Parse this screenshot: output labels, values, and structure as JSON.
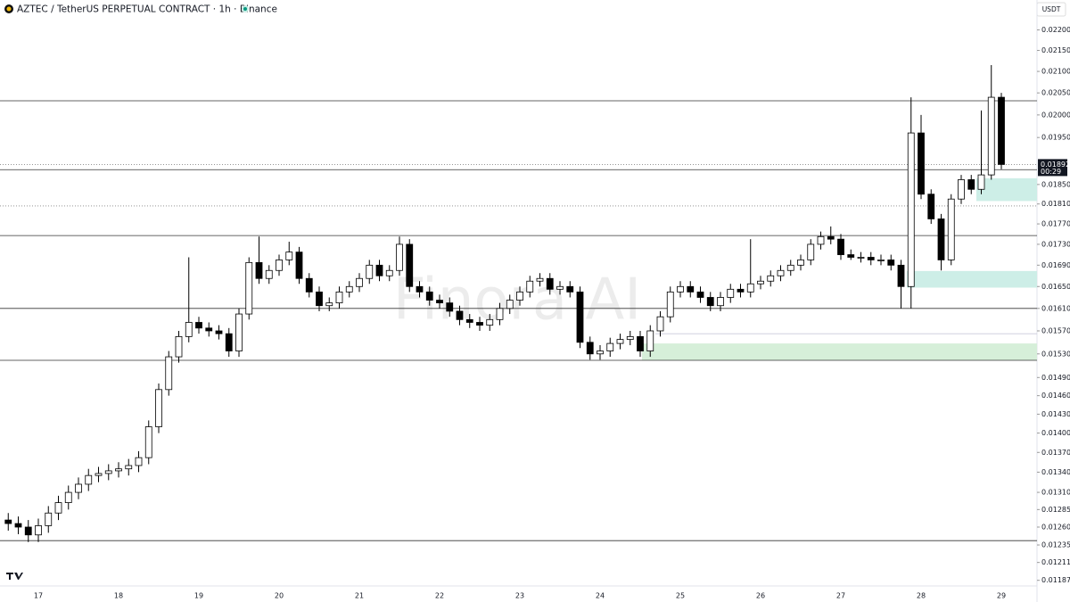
{
  "chart_data": {
    "type": "candlestick",
    "title": "AZTEC / TetherUS PERPETUAL CONTRACT · 1h · Binance",
    "currency": "USDT",
    "watermark": "Finora AI",
    "log_scale": true,
    "up_color": "#ffffff",
    "down_color": "#000000",
    "categories": [
      null,
      null,
      null,
      "17",
      null,
      null,
      null,
      null,
      null,
      null,
      null,
      "18",
      null,
      null,
      null,
      null,
      null,
      null,
      null,
      "19",
      null,
      null,
      null,
      null,
      null,
      null,
      null,
      "20",
      null,
      null,
      null,
      null,
      null,
      null,
      null,
      "21",
      null,
      null,
      null,
      null,
      null,
      null,
      null,
      "22",
      null,
      null,
      null,
      null,
      null,
      null,
      null,
      "23",
      null,
      null,
      null,
      null,
      null,
      null,
      null,
      "24",
      null,
      null,
      null,
      null,
      null,
      null,
      null,
      "25",
      null,
      null,
      null,
      null,
      null,
      null,
      null,
      "26",
      null,
      null,
      null,
      null,
      null,
      null,
      null,
      "27",
      null,
      null,
      null,
      null,
      null,
      null,
      null,
      "28",
      null,
      null,
      null,
      null,
      null,
      null,
      null,
      "29"
    ],
    "open": [
      0.0127,
      0.01265,
      0.0126,
      0.01249,
      0.01262,
      0.0128,
      0.01295,
      0.0131,
      0.01322,
      0.01335,
      0.01338,
      0.01342,
      0.01345,
      0.0135,
      0.01362,
      0.0141,
      0.0147,
      0.01525,
      0.0156,
      0.01585,
      0.01575,
      0.0157,
      0.01565,
      0.01535,
      0.016,
      0.01695,
      0.01665,
      0.0168,
      0.017,
      0.01715,
      0.01665,
      0.0164,
      0.01615,
      0.0162,
      0.0164,
      0.0165,
      0.01665,
      0.0169,
      0.0167,
      0.0168,
      0.0173,
      0.0165,
      0.0164,
      0.01625,
      0.0162,
      0.01605,
      0.0159,
      0.01585,
      0.0158,
      0.0159,
      0.0161,
      0.01625,
      0.0164,
      0.0166,
      0.01665,
      0.01645,
      0.0165,
      0.0164,
      0.0155,
      0.0153,
      0.01535,
      0.01548,
      0.01555,
      0.0156,
      0.01535,
      0.0157,
      0.01595,
      0.0164,
      0.0165,
      0.0164,
      0.0163,
      0.01615,
      0.0163,
      0.01645,
      0.0164,
      0.01655,
      0.0166,
      0.0167,
      0.0168,
      0.0169,
      0.017,
      0.0173,
      0.01745,
      0.0174,
      0.0171,
      0.01705,
      0.01705,
      0.017,
      0.017,
      0.0169,
      0.0165,
      0.0196,
      0.0183,
      0.0178,
      0.017,
      0.0182,
      0.0186,
      0.0184,
      0.0187,
      0.0204
    ],
    "high": [
      0.0128,
      0.01275,
      0.0127,
      0.01272,
      0.0129,
      0.01305,
      0.0132,
      0.01332,
      0.01345,
      0.01348,
      0.01352,
      0.01355,
      0.0136,
      0.01372,
      0.0142,
      0.0148,
      0.01535,
      0.0157,
      0.01705,
      0.01595,
      0.01585,
      0.0158,
      0.01575,
      0.0161,
      0.01705,
      0.01745,
      0.0169,
      0.0171,
      0.01735,
      0.01725,
      0.01675,
      0.0165,
      0.0163,
      0.0165,
      0.0166,
      0.01675,
      0.017,
      0.017,
      0.0169,
      0.01745,
      0.0174,
      0.0166,
      0.0165,
      0.01635,
      0.0163,
      0.01615,
      0.016,
      0.01595,
      0.016,
      0.0162,
      0.01635,
      0.0165,
      0.0167,
      0.01675,
      0.01675,
      0.0166,
      0.0166,
      0.0165,
      0.0156,
      0.01545,
      0.01558,
      0.01565,
      0.0157,
      0.0157,
      0.0158,
      0.01605,
      0.0165,
      0.0166,
      0.0166,
      0.0165,
      0.0164,
      0.0164,
      0.01655,
      0.01655,
      0.0174,
      0.0167,
      0.0168,
      0.0169,
      0.017,
      0.0171,
      0.0174,
      0.01755,
      0.01765,
      0.0175,
      0.0172,
      0.01715,
      0.01715,
      0.0171,
      0.0171,
      0.017,
      0.0204,
      0.02,
      0.0184,
      0.0179,
      0.0183,
      0.0187,
      0.0187,
      0.0201,
      0.02115,
      0.0205
    ],
    "low": [
      0.01255,
      0.0125,
      0.01239,
      0.01239,
      0.01252,
      0.0127,
      0.01285,
      0.013,
      0.01312,
      0.01325,
      0.01328,
      0.01332,
      0.01335,
      0.0134,
      0.01352,
      0.014,
      0.0146,
      0.01515,
      0.0155,
      0.01565,
      0.0156,
      0.01555,
      0.01525,
      0.01525,
      0.0159,
      0.01655,
      0.01655,
      0.0167,
      0.0169,
      0.01655,
      0.0163,
      0.01605,
      0.01605,
      0.0161,
      0.0163,
      0.0164,
      0.01655,
      0.0166,
      0.0166,
      0.0167,
      0.0164,
      0.0163,
      0.01615,
      0.0161,
      0.01595,
      0.0158,
      0.01575,
      0.0157,
      0.0157,
      0.0158,
      0.016,
      0.01615,
      0.0163,
      0.0165,
      0.01635,
      0.01635,
      0.0163,
      0.0154,
      0.0152,
      0.0152,
      0.01525,
      0.01538,
      0.01545,
      0.01525,
      0.01525,
      0.0156,
      0.01585,
      0.0163,
      0.0163,
      0.0162,
      0.01605,
      0.01605,
      0.0162,
      0.0163,
      0.0163,
      0.01645,
      0.0165,
      0.0166,
      0.0167,
      0.0168,
      0.0169,
      0.0172,
      0.0173,
      0.017,
      0.017,
      0.01695,
      0.0169,
      0.0169,
      0.0168,
      0.0161,
      0.0161,
      0.0182,
      0.0177,
      0.0168,
      0.0169,
      0.0181,
      0.0183,
      0.0183,
      0.0186,
      0.01882
    ],
    "close": [
      0.01265,
      0.0126,
      0.01249,
      0.01262,
      0.0128,
      0.01295,
      0.0131,
      0.01322,
      0.01335,
      0.01338,
      0.01342,
      0.01345,
      0.0135,
      0.01362,
      0.0141,
      0.0147,
      0.01525,
      0.0156,
      0.01585,
      0.01575,
      0.0157,
      0.01565,
      0.01535,
      0.016,
      0.01695,
      0.01665,
      0.0168,
      0.017,
      0.01715,
      0.01665,
      0.0164,
      0.01615,
      0.0162,
      0.0164,
      0.0165,
      0.01665,
      0.0169,
      0.0167,
      0.0168,
      0.0173,
      0.0165,
      0.0164,
      0.01625,
      0.0162,
      0.01605,
      0.0159,
      0.01585,
      0.0158,
      0.0159,
      0.0161,
      0.01625,
      0.0164,
      0.0166,
      0.01665,
      0.01645,
      0.0165,
      0.0164,
      0.0155,
      0.0153,
      0.01535,
      0.01548,
      0.01555,
      0.0156,
      0.01535,
      0.0157,
      0.01595,
      0.0164,
      0.0165,
      0.0164,
      0.0163,
      0.01615,
      0.0163,
      0.01645,
      0.0164,
      0.01655,
      0.0166,
      0.0167,
      0.0168,
      0.0169,
      0.017,
      0.0173,
      0.01745,
      0.0174,
      0.0171,
      0.01705,
      0.01705,
      0.017,
      0.017,
      0.0169,
      0.0165,
      0.0196,
      0.0183,
      0.0178,
      0.017,
      0.0182,
      0.0186,
      0.0184,
      0.0187,
      0.0204,
      0.01892
    ],
    "ylim": [
      0.01176,
      0.0223
    ],
    "yticks": [
      {
        "value": 0.022,
        "label": "0.02200"
      },
      {
        "value": 0.0215,
        "label": "0.02150"
      },
      {
        "value": 0.021,
        "label": "0.02100"
      },
      {
        "value": 0.0205,
        "label": "0.02050"
      },
      {
        "value": 0.02,
        "label": "0.02000"
      },
      {
        "value": 0.0195,
        "label": "0.01950"
      },
      {
        "value": 0.0185,
        "label": "0.01850"
      },
      {
        "value": 0.0181,
        "label": "0.01810"
      },
      {
        "value": 0.0177,
        "label": "0.01770"
      },
      {
        "value": 0.0173,
        "label": "0.01730"
      },
      {
        "value": 0.0169,
        "label": "0.01690"
      },
      {
        "value": 0.0165,
        "label": "0.01650"
      },
      {
        "value": 0.0161,
        "label": "0.01610"
      },
      {
        "value": 0.0157,
        "label": "0.01570"
      },
      {
        "value": 0.0153,
        "label": "0.01530"
      },
      {
        "value": 0.0149,
        "label": "0.01490"
      },
      {
        "value": 0.0146,
        "label": "0.01460"
      },
      {
        "value": 0.0143,
        "label": "0.01430"
      },
      {
        "value": 0.014,
        "label": "0.01400"
      },
      {
        "value": 0.0137,
        "label": "0.01370"
      },
      {
        "value": 0.0134,
        "label": "0.01340"
      },
      {
        "value": 0.0131,
        "label": "0.01310"
      },
      {
        "value": 0.01285,
        "label": "0.01285"
      },
      {
        "value": 0.0126,
        "label": "0.01260"
      },
      {
        "value": 0.01235,
        "label": "0.01235"
      },
      {
        "value": 0.01211,
        "label": "0.01211"
      },
      {
        "value": 0.01187,
        "label": "0.01187"
      }
    ],
    "last_price": {
      "value": 0.01892,
      "label": "0.01892"
    },
    "countdown": "00:29",
    "levels": [
      0.02032,
      0.01881,
      0.01747,
      0.0161,
      0.01519,
      0.01241
    ],
    "dotted_levels": [
      0.01892,
      0.01806
    ],
    "faint_levels": [
      0.01565
    ],
    "zones": [
      {
        "low": 0.01816,
        "high": 0.01863,
        "color": "#cdeee7"
      },
      {
        "low": 0.01648,
        "high": 0.01679,
        "color": "#cdeee7"
      },
      {
        "low": 0.01519,
        "high": 0.01548,
        "color": "#d6efd9"
      }
    ]
  }
}
